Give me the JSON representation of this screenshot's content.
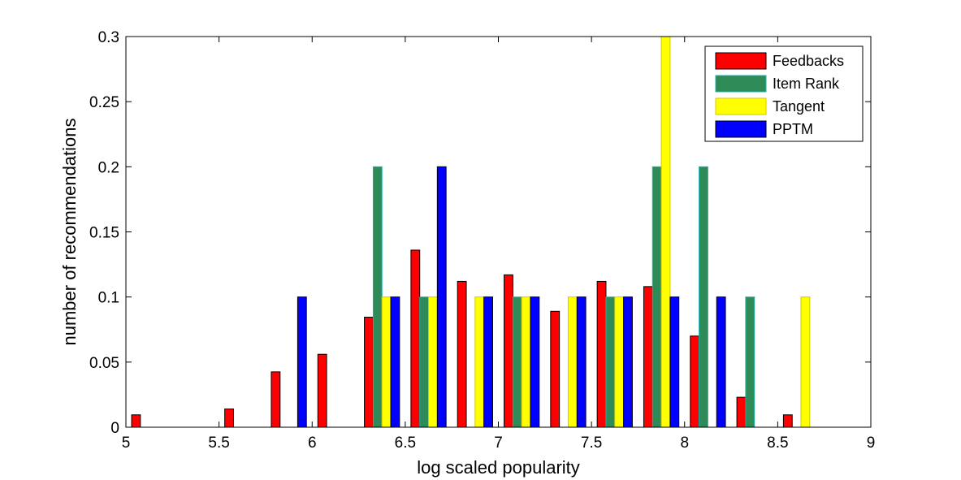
{
  "chart_data": {
    "type": "bar",
    "xlabel": "log scaled popularity",
    "ylabel": "number of recommendations",
    "xlim": [
      5,
      9
    ],
    "ylim": [
      0,
      0.3
    ],
    "xticks": [
      "5",
      "5.5",
      "6",
      "6.5",
      "7",
      "7.5",
      "8",
      "8.5",
      "9"
    ],
    "yticks": [
      "0",
      "0.05",
      "0.1",
      "0.15",
      "0.2",
      "0.25",
      "0.3"
    ],
    "grid": false,
    "legend_position": "top-right",
    "bin_centers": [
      5.125,
      5.375,
      5.625,
      5.875,
      6.125,
      6.375,
      6.625,
      6.875,
      7.125,
      7.375,
      7.625,
      7.875,
      8.125,
      8.375,
      8.625,
      8.875
    ],
    "series": [
      {
        "name": "Feedbacks",
        "color": "#ff0000",
        "stroke": "#000000",
        "values": [
          0.0095,
          0,
          0.014,
          0.0425,
          0.056,
          0.0845,
          0.136,
          0.112,
          0.117,
          0.089,
          0.112,
          0.108,
          0.07,
          0.023,
          0.0095,
          0
        ]
      },
      {
        "name": "Item Rank",
        "color": "#2e8b57",
        "stroke": "#20b2aa",
        "values": [
          0,
          0,
          0,
          0,
          0,
          0.2,
          0.1,
          0,
          0.1,
          0,
          0.1,
          0.2,
          0.2,
          0.1,
          0,
          0
        ]
      },
      {
        "name": "Tangent",
        "color": "#ffff00",
        "stroke": "#d4c800",
        "values": [
          0,
          0,
          0,
          0,
          0,
          0.1,
          0.1,
          0.1,
          0.1,
          0.1,
          0.1,
          0.3,
          0,
          0,
          0.1,
          0
        ]
      },
      {
        "name": "PPTM",
        "color": "#0000ff",
        "stroke": "#000000",
        "values": [
          0,
          0,
          0,
          0.1,
          0,
          0.1,
          0.2,
          0.1,
          0.1,
          0.1,
          0.1,
          0.1,
          0.1,
          0,
          0,
          0
        ]
      }
    ]
  }
}
